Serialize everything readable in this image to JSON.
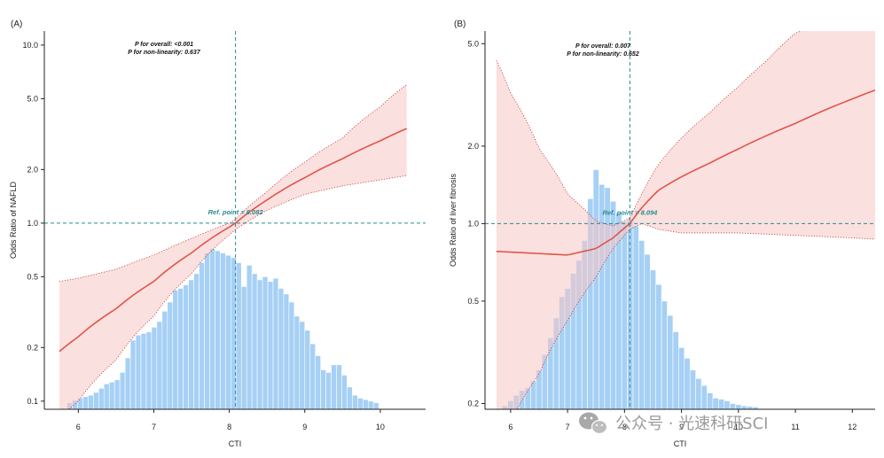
{
  "watermark": {
    "text": "公众号 · 光速科研SCI",
    "icon": "wechat-icon"
  },
  "chart_data": [
    {
      "type": "line",
      "panel_label": "(A)",
      "xlabel": "CTI",
      "ylabel": "Odds Ratio of NAFLD",
      "y_scale": "log",
      "xlim": [
        5.55,
        10.6
      ],
      "ylim": [
        0.09,
        12.0
      ],
      "x_ticks": [
        6,
        7,
        8,
        9,
        10
      ],
      "y_ticks": [
        0.1,
        0.2,
        0.5,
        1.0,
        2.0,
        5.0,
        10.0
      ],
      "y_tick_labels": [
        "0.1",
        "0.2",
        "0.5",
        "1.0",
        "2.0",
        "5.0",
        "10.0"
      ],
      "stats": [
        "P for overall: <0.001",
        "P for non-linearity: 0.637"
      ],
      "reference": {
        "x": 8.082,
        "y": 1.0,
        "label": "Ref. point = 8.082"
      },
      "curve": {
        "x": [
          5.75,
          6.0,
          6.5,
          7.0,
          7.5,
          8.0,
          8.082,
          8.5,
          9.0,
          9.5,
          10.0,
          10.35
        ],
        "or": [
          0.19,
          0.23,
          0.33,
          0.47,
          0.68,
          0.95,
          1.0,
          1.35,
          1.8,
          2.3,
          2.9,
          3.4
        ],
        "lower": [
          0.08,
          0.1,
          0.17,
          0.3,
          0.52,
          0.86,
          0.92,
          1.18,
          1.45,
          1.62,
          1.75,
          1.85
        ],
        "upper": [
          0.47,
          0.49,
          0.55,
          0.66,
          0.82,
          1.0,
          1.05,
          1.5,
          2.2,
          3.0,
          4.5,
          6.0
        ]
      },
      "histogram": {
        "bin_start": 5.85,
        "bin_width": 0.07,
        "max_height_or": 0.72,
        "heights": [
          0.098,
          0.101,
          0.104,
          0.106,
          0.108,
          0.112,
          0.118,
          0.125,
          0.128,
          0.132,
          0.145,
          0.175,
          0.22,
          0.235,
          0.24,
          0.245,
          0.26,
          0.28,
          0.32,
          0.36,
          0.42,
          0.43,
          0.45,
          0.48,
          0.52,
          0.6,
          0.68,
          0.72,
          0.7,
          0.68,
          0.66,
          0.64,
          0.6,
          0.44,
          0.58,
          0.52,
          0.48,
          0.5,
          0.47,
          0.49,
          0.43,
          0.4,
          0.36,
          0.3,
          0.28,
          0.25,
          0.21,
          0.18,
          0.15,
          0.145,
          0.16,
          0.16,
          0.14,
          0.12,
          0.108,
          0.104,
          0.102,
          0.1,
          0.098
        ]
      }
    },
    {
      "type": "line",
      "panel_label": "(B)",
      "xlabel": "CTI",
      "ylabel": "Odds Ratio of liver fibrosis",
      "y_scale": "log",
      "xlim": [
        5.55,
        12.4
      ],
      "ylim": [
        0.19,
        5.6
      ],
      "x_ticks": [
        6,
        7,
        8,
        9,
        10,
        11,
        12
      ],
      "y_ticks": [
        0.2,
        0.5,
        1.0,
        2.0,
        5.0
      ],
      "y_tick_labels": [
        "0.2",
        "0.5",
        "1.0",
        "2.0",
        "5.0"
      ],
      "stats": [
        "P for overall: 0.007",
        "P for non-linearity: 0.652"
      ],
      "reference": {
        "x": 8.094,
        "y": 1.0,
        "label": "Ref. point = 8.094"
      },
      "curve": {
        "x": [
          5.75,
          6.0,
          6.5,
          7.0,
          7.5,
          7.8,
          8.094,
          8.3,
          8.6,
          9.0,
          9.5,
          10.0,
          10.5,
          11.0,
          11.5,
          12.0,
          12.4
        ],
        "or": [
          0.78,
          0.775,
          0.765,
          0.755,
          0.8,
          0.88,
          1.0,
          1.15,
          1.35,
          1.52,
          1.72,
          1.95,
          2.2,
          2.45,
          2.75,
          3.05,
          3.3
        ],
        "lower": [
          0.15,
          0.17,
          0.26,
          0.42,
          0.62,
          0.8,
          0.95,
          1.0,
          0.95,
          0.92,
          0.92,
          0.92,
          0.91,
          0.9,
          0.89,
          0.88,
          0.87
        ],
        "upper": [
          4.3,
          3.2,
          1.95,
          1.3,
          1.02,
          0.98,
          1.05,
          1.3,
          1.7,
          2.15,
          2.7,
          3.4,
          4.3,
          5.5,
          6.0,
          6.5,
          7.0
        ]
      },
      "histogram": {
        "bin_start": 5.85,
        "bin_width": 0.1,
        "max_height_or": 1.62,
        "heights": [
          0.196,
          0.205,
          0.215,
          0.225,
          0.23,
          0.245,
          0.27,
          0.31,
          0.36,
          0.43,
          0.52,
          0.56,
          0.64,
          0.72,
          0.86,
          1.25,
          1.62,
          1.42,
          1.38,
          1.22,
          1.1,
          1.02,
          1.04,
          0.98,
          0.86,
          0.76,
          0.66,
          0.58,
          0.5,
          0.44,
          0.38,
          0.33,
          0.3,
          0.27,
          0.25,
          0.235,
          0.22,
          0.21,
          0.208,
          0.205,
          0.2,
          0.198,
          0.196,
          0.195,
          0.194
        ]
      }
    }
  ]
}
